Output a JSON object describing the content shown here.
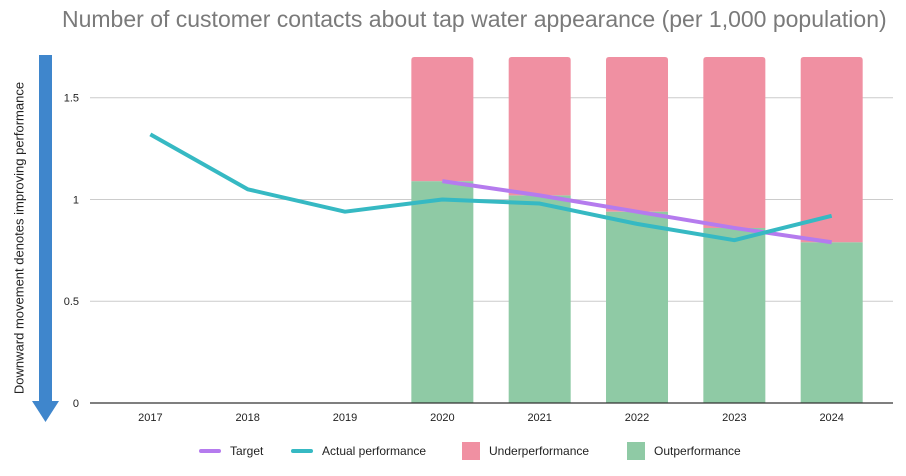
{
  "chart_data": {
    "type": "bar",
    "title": "Number of customer contacts about tap water appearance (per 1,000 population)",
    "xlabel": "",
    "ylabel": "",
    "ylim": [
      0,
      1.7
    ],
    "yticks": [
      0,
      0.5,
      1,
      1.5
    ],
    "ytick_labels": [
      "0",
      "0.5",
      "1",
      "1.5"
    ],
    "categories": [
      "2017",
      "2018",
      "2019",
      "2020",
      "2021",
      "2022",
      "2023",
      "2024"
    ],
    "series": [
      {
        "name": "Target",
        "kind": "line",
        "color": "#b57bee",
        "values": [
          null,
          null,
          null,
          1.09,
          1.02,
          0.94,
          0.86,
          0.79
        ]
      },
      {
        "name": "Actual performance",
        "kind": "line",
        "color": "#36b9c3",
        "values": [
          1.32,
          1.05,
          0.94,
          1.0,
          0.98,
          0.88,
          0.8,
          0.92
        ]
      },
      {
        "name": "Underperformance",
        "kind": "bar",
        "color": "#f090a2",
        "values": [
          null,
          null,
          null,
          0.61,
          0.68,
          0.76,
          0.84,
          0.91
        ]
      },
      {
        "name": "Outperformance",
        "kind": "bar",
        "color": "#8fcaa5",
        "values": [
          null,
          null,
          null,
          1.09,
          1.02,
          0.94,
          0.86,
          0.79
        ]
      }
    ],
    "grid": true,
    "legend_position": "bottom"
  },
  "annotation": {
    "arrow_label": "Downward movement denotes improving performance",
    "arrow_color": "#3f86cc"
  }
}
